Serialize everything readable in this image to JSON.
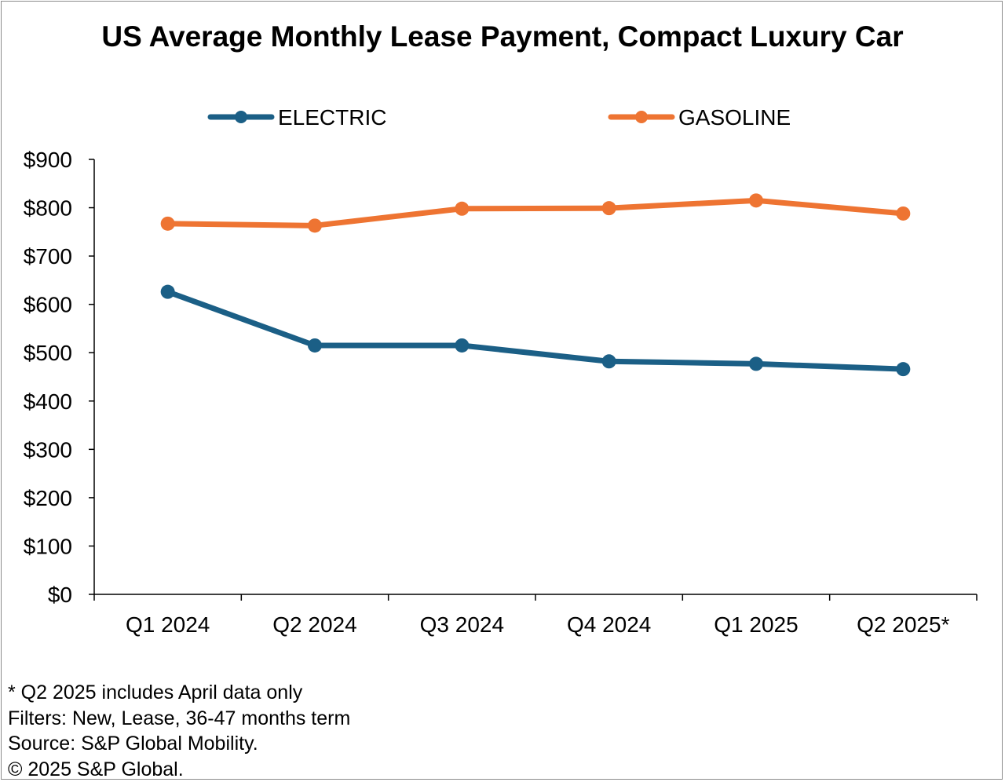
{
  "chart_data": {
    "type": "line",
    "title": "US Average Monthly Lease Payment, Compact Luxury Car",
    "categories": [
      "Q1 2024",
      "Q2 2024",
      "Q3 2024",
      "Q4 2024",
      "Q1 2025",
      "Q2 2025*"
    ],
    "series": [
      {
        "name": "ELECTRIC",
        "color": "#1b5f86",
        "values": [
          626,
          515,
          515,
          482,
          477,
          466
        ]
      },
      {
        "name": "GASOLINE",
        "color": "#ee7432",
        "values": [
          767,
          763,
          798,
          799,
          815,
          788
        ]
      }
    ],
    "ylim": [
      0,
      900
    ],
    "yticks": [
      0,
      100,
      200,
      300,
      400,
      500,
      600,
      700,
      800,
      900
    ],
    "ytick_labels": [
      "$0",
      "$100",
      "$200",
      "$300",
      "$400",
      "$500",
      "$600",
      "$700",
      "$800",
      "$900"
    ],
    "xlabel": "",
    "ylabel": "",
    "legend_position": "top",
    "grid": false
  },
  "notes": {
    "footnote": "* Q2 2025 includes April data only",
    "filters": "Filters: New, Lease, 36-47 months term",
    "source": "Source: S&P Global Mobility.",
    "copyright": "© 2025 S&P Global."
  }
}
